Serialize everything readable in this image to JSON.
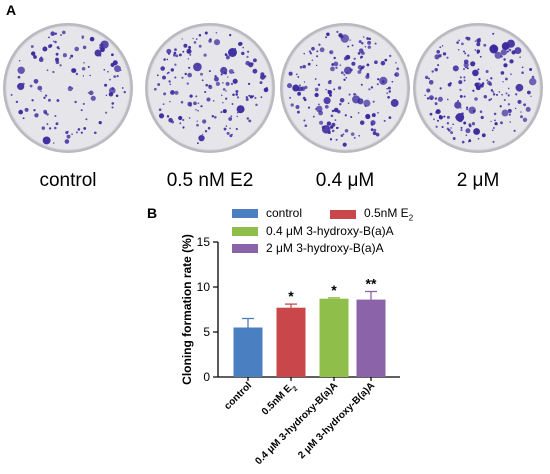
{
  "panels": {
    "a_letter": "A",
    "b_letter": "B"
  },
  "plates": [
    {
      "label": "control",
      "colony_density": 0.45
    },
    {
      "label": "0.5 nM E2",
      "colony_density": 0.75
    },
    {
      "label": "0.4 μM",
      "colony_density": 0.85
    },
    {
      "label": "2 μM",
      "colony_density": 0.95
    }
  ],
  "colors": {
    "plate_fill": "#e6e6ea",
    "plate_rim": "#b9b9c0",
    "colony": "#3b2a9e"
  },
  "legend": [
    {
      "label": "control",
      "color": "#4a7fc1"
    },
    {
      "label": "0.5nM E",
      "subscript": "2",
      "color": "#c9474a"
    },
    {
      "label": "0.4 μM 3-hydroxy-B(a)A",
      "color": "#8fbf4a"
    },
    {
      "label": "2 μM 3-hydroxy-B(a)A",
      "color": "#8a63a8"
    }
  ],
  "chart_data": {
    "type": "bar",
    "title": "",
    "xlabel": "",
    "ylabel": "Cloning formation rate (%)",
    "ylim": [
      0,
      15
    ],
    "yticks": [
      0,
      5,
      10,
      15
    ],
    "categories": [
      "control",
      "0.5nM E2",
      "0.4 μM 3-hydroxy-B(a)A",
      "2 μM 3-hydroxy-B(a)A"
    ],
    "category_labels": [
      {
        "text": "control",
        "sub": ""
      },
      {
        "text": "0.5nM E",
        "sub": "2"
      },
      {
        "text": "0.4 μM 3-hydroxy-B(a)A",
        "sub": ""
      },
      {
        "text": "2 μM 3-hydroxy-B(a)A",
        "sub": ""
      }
    ],
    "values": [
      5.5,
      7.7,
      8.7,
      8.6
    ],
    "errors": [
      1.0,
      0.4,
      0.1,
      0.9
    ],
    "significance": [
      "",
      "*",
      "*",
      "**"
    ],
    "colors": [
      "#4a7fc1",
      "#c9474a",
      "#8fbf4a",
      "#8a63a8"
    ],
    "grid": false,
    "legend_position": "top"
  }
}
